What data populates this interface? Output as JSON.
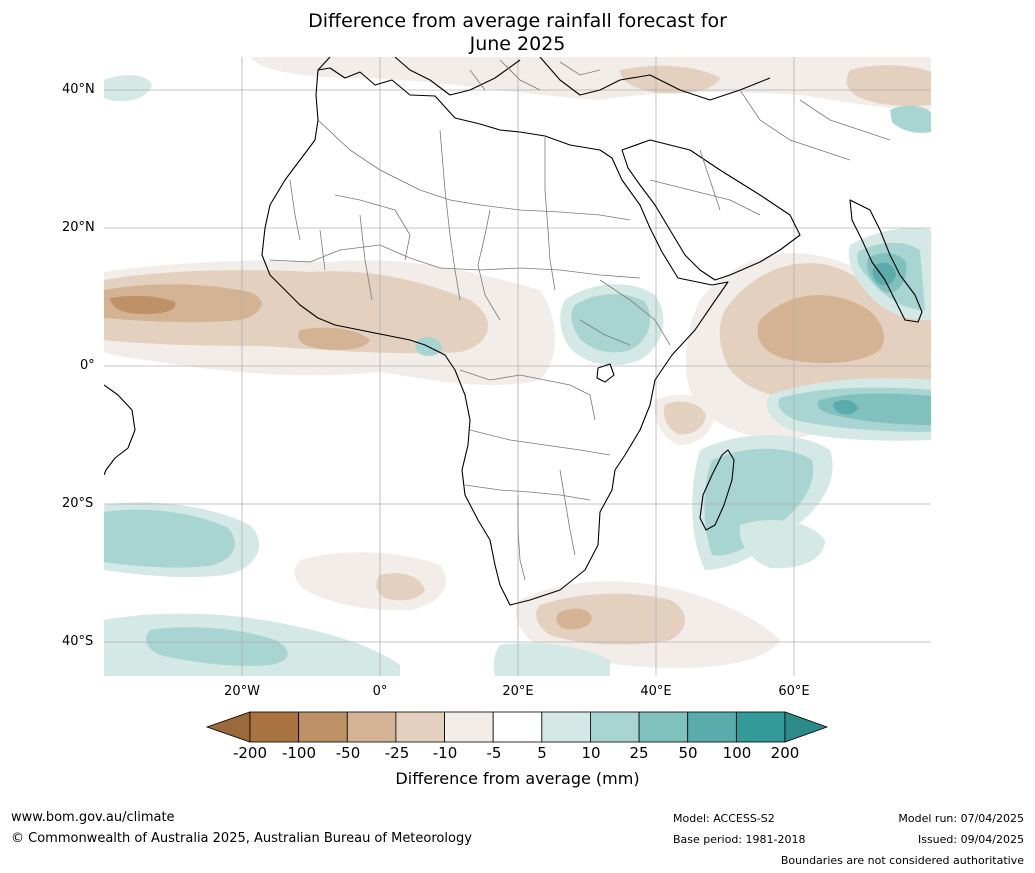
{
  "title": {
    "line1": "Difference from average rainfall forecast for",
    "line2": "June 2025"
  },
  "map": {
    "lat_labels": [
      "40°N",
      "20°N",
      "0°",
      "20°S",
      "40°S"
    ],
    "lon_labels": [
      "20°W",
      "0°",
      "20°E",
      "40°E",
      "60°E"
    ],
    "region": "Africa",
    "extent": {
      "lon_min": -39,
      "lon_max": 81,
      "lat_min": -45,
      "lat_max": 45
    }
  },
  "colorbar": {
    "ticks": [
      "-200",
      "-100",
      "-50",
      "-25",
      "-10",
      "-5",
      "5",
      "10",
      "25",
      "50",
      "100",
      "200"
    ],
    "colors": [
      "#a97341",
      "#bf9167",
      "#d4b395",
      "#e3d0bf",
      "#f2ede8",
      "#ffffff",
      "#d4e8e6",
      "#a8d4d2",
      "#80c0bd",
      "#5aabab",
      "#339999"
    ],
    "extend_low_color": "#9c6a3a",
    "extend_high_color": "#2d8a8a",
    "title": "Difference from average (mm)"
  },
  "footer": {
    "website": "www.bom.gov.au/climate",
    "copyright": "© Commonwealth of Australia 2025, Australian Bureau of Meteorology",
    "model": "Model: ACCESS-S2",
    "base_period": "Base period: 1981-2018",
    "model_run": "Model run: 07/04/2025",
    "issued": "Issued: 09/04/2025",
    "disclaimer": "Boundaries are not considered authoritative"
  }
}
